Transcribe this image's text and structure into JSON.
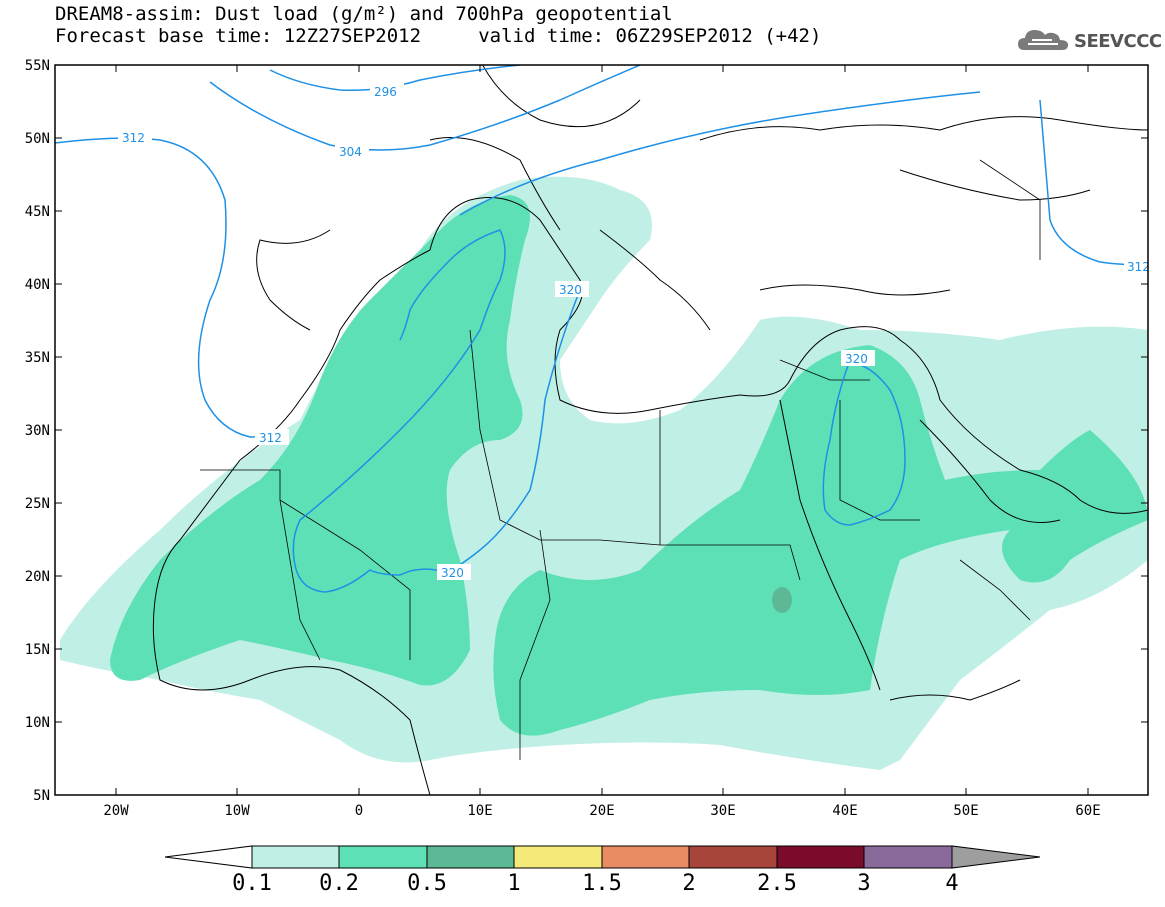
{
  "header": {
    "title_line1": "DREAM8-assim: Dust load (g/m²) and 700hPa geopotential",
    "title_line2": "Forecast base time: 12Z27SEP2012     valid time: 06Z29SEP2012 (+42)"
  },
  "logo": {
    "text": "SEEVCCC",
    "icon": "cloud-logo-icon"
  },
  "map": {
    "lat_labels": [
      "55N",
      "50N",
      "45N",
      "40N",
      "35N",
      "30N",
      "25N",
      "20N",
      "15N",
      "10N",
      "5N"
    ],
    "lon_labels": [
      "20W",
      "10W",
      "0",
      "10E",
      "20E",
      "30E",
      "40E",
      "50E",
      "60E"
    ],
    "contour_labels": [
      "296",
      "304",
      "312",
      "312",
      "320",
      "320",
      "320",
      "312"
    ],
    "colors": {
      "dust_0_1": "#c0efe6",
      "dust_0_2": "#5ee0b6",
      "dust_0_5": "#5db896",
      "contour": "#1e90e6"
    }
  },
  "colorbar": {
    "labels": [
      "0.1",
      "0.2",
      "0.5",
      "1",
      "1.5",
      "2",
      "2.5",
      "3",
      "4"
    ],
    "colors": [
      "#ffffff",
      "#c0efe6",
      "#5ee0b6",
      "#5db896",
      "#f5e97a",
      "#e88c63",
      "#a8453a",
      "#7a0b2a",
      "#8a6a9b",
      "#9e9e9e"
    ]
  }
}
